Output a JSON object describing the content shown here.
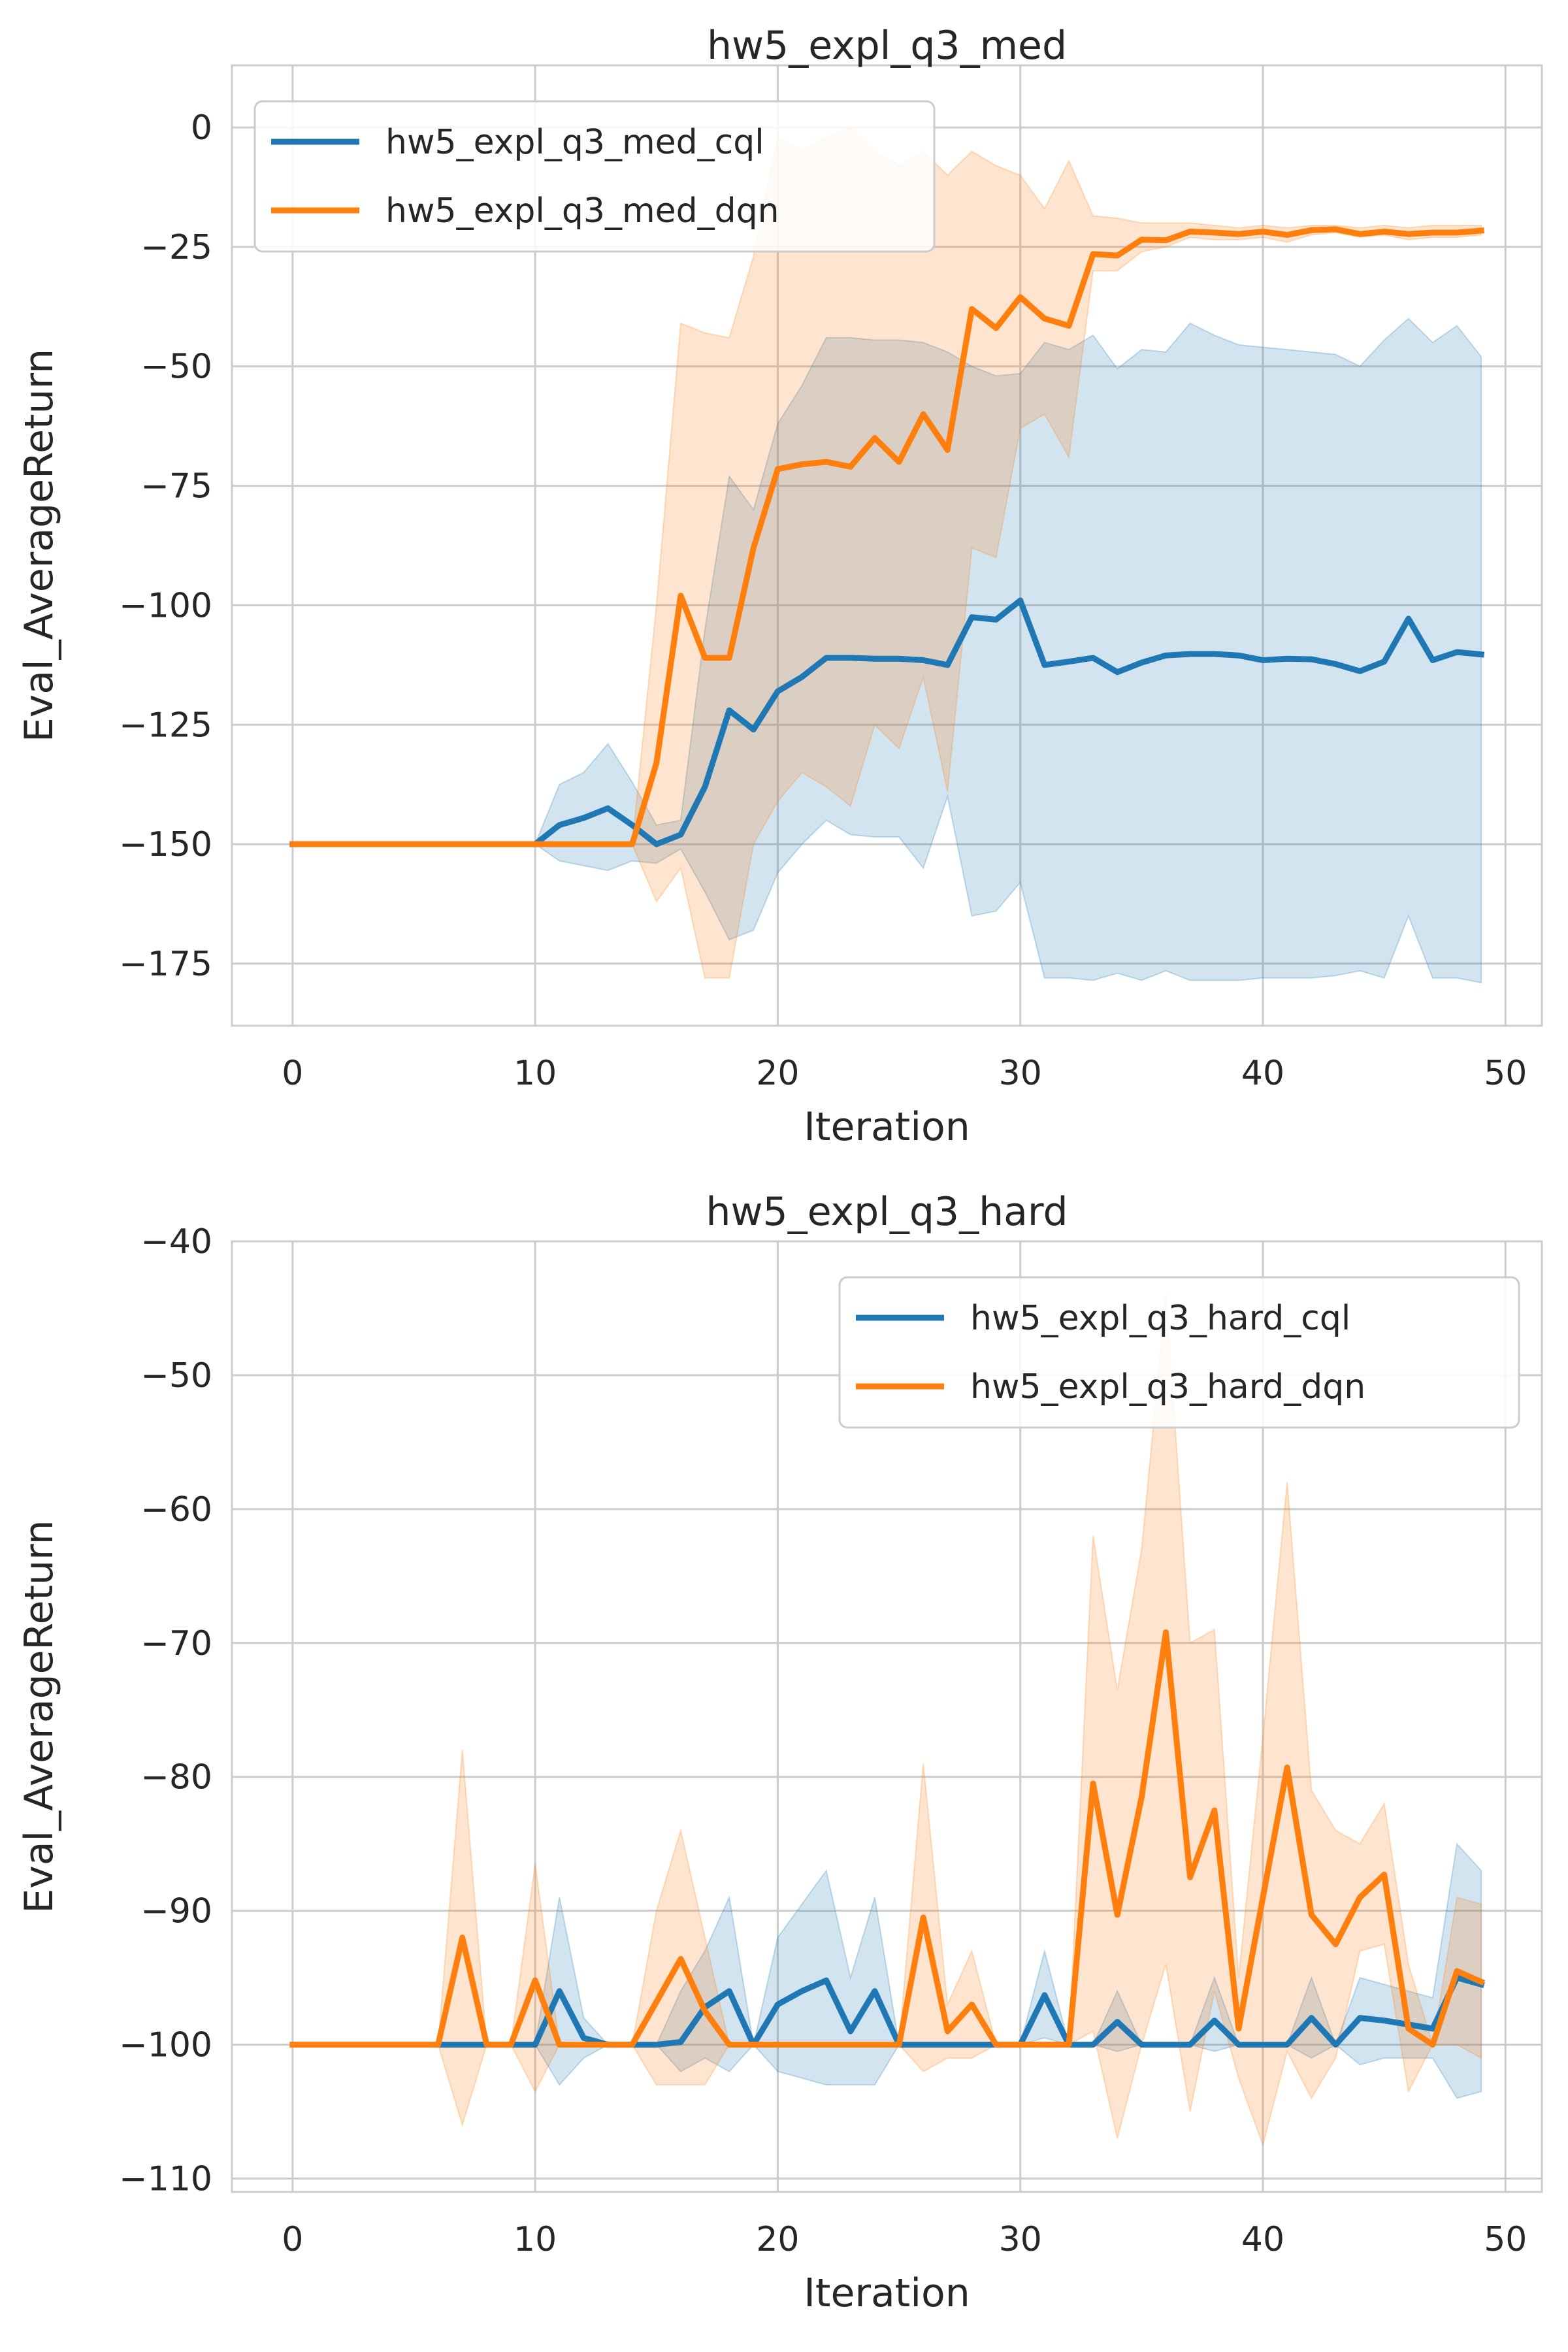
{
  "chart_data": [
    {
      "type": "line",
      "title": "hw5_expl_q3_med",
      "xlabel": "Iteration",
      "ylabel": "Eval_AverageReturn",
      "xlim": [
        -2.5,
        51.5
      ],
      "ylim": [
        -188,
        13
      ],
      "xticks": [
        0,
        10,
        20,
        30,
        40,
        50
      ],
      "yticks": [
        0,
        -25,
        -50,
        -75,
        -100,
        -125,
        -150,
        -175
      ],
      "grid": true,
      "legend_position": "upper-left",
      "x": [
        0,
        1,
        2,
        3,
        4,
        5,
        6,
        7,
        8,
        9,
        10,
        11,
        12,
        13,
        14,
        15,
        16,
        17,
        18,
        19,
        20,
        21,
        22,
        23,
        24,
        25,
        26,
        27,
        28,
        29,
        30,
        31,
        32,
        33,
        34,
        35,
        36,
        37,
        38,
        39,
        40,
        41,
        42,
        43,
        44,
        45,
        46,
        47,
        48,
        49
      ],
      "series": [
        {
          "name": "hw5_expl_q3_med_cql",
          "color": "#1f77b4",
          "values": [
            -150,
            -150,
            -150,
            -150,
            -150,
            -150,
            -150,
            -150,
            -150,
            -150,
            -150,
            -146,
            -144.5,
            -142.5,
            -146,
            -150,
            -148,
            -138,
            -122,
            -126,
            -118,
            -115,
            -111,
            -111,
            -111.2,
            -111.2,
            -111.5,
            -112.5,
            -102.5,
            -103,
            -99,
            -112.5,
            -111.8,
            -111,
            -114,
            -112,
            -110.5,
            -110.2,
            -110.2,
            -110.5,
            -111.5,
            -111.2,
            -111.3,
            -112.3,
            -113.8,
            -111.8,
            -102.8,
            -111.5,
            -109.8,
            -110.3
          ],
          "upper": [
            -150,
            -150,
            -150,
            -150,
            -150,
            -150,
            -150,
            -150,
            -150,
            -150,
            -150,
            -137.5,
            -135,
            -129,
            -137,
            -146,
            -145,
            -105,
            -73,
            -80,
            -62,
            -54,
            -44,
            -44,
            -44.5,
            -44.5,
            -45,
            -47,
            -50,
            -52,
            -51.5,
            -45,
            -46.5,
            -43.5,
            -50.5,
            -46.5,
            -47,
            -41,
            -43.5,
            -45.5,
            -46,
            -46.5,
            -47,
            -47.5,
            -50,
            -44.5,
            -40,
            -45,
            -41.5,
            -48
          ],
          "lower": [
            -150,
            -150,
            -150,
            -150,
            -150,
            -150,
            -150,
            -150,
            -150,
            -150,
            -150,
            -153.5,
            -154.5,
            -155.5,
            -153.5,
            -154,
            -151,
            -160,
            -170,
            -168,
            -156,
            -150,
            -145,
            -148,
            -148.5,
            -148.5,
            -155,
            -140,
            -165,
            -164,
            -158,
            -178,
            -178,
            -178.5,
            -177,
            -178.5,
            -176.5,
            -178.5,
            -178.5,
            -178.5,
            -178,
            -178,
            -178,
            -177.5,
            -176.5,
            -178,
            -165,
            -178,
            -178,
            -179
          ]
        },
        {
          "name": "hw5_expl_q3_med_dqn",
          "color": "#ff7f0e",
          "values": [
            -150,
            -150,
            -150,
            -150,
            -150,
            -150,
            -150,
            -150,
            -150,
            -150,
            -150,
            -150,
            -150,
            -150,
            -150,
            -133,
            -98,
            -111,
            -111,
            -88,
            -71.5,
            -70.5,
            -70,
            -71,
            -65,
            -70,
            -60,
            -67.5,
            -38,
            -42,
            -35.5,
            -40,
            -41.5,
            -26.5,
            -26.8,
            -23.5,
            -23.6,
            -21.8,
            -22,
            -22.3,
            -21.8,
            -22.5,
            -21.5,
            -21.3,
            -22.3,
            -21.8,
            -22.3,
            -22,
            -22,
            -21.6
          ],
          "upper": [
            -150,
            -150,
            -150,
            -150,
            -150,
            -150,
            -150,
            -150,
            -150,
            -150,
            -150,
            -150,
            -150,
            -150,
            -150,
            -100,
            -41,
            -43,
            -44,
            -27,
            -2,
            -5,
            -2,
            0,
            -5,
            -8,
            -5,
            -10,
            -5,
            -8,
            -10,
            -17,
            -7,
            -18.5,
            -19,
            -20,
            -20,
            -20,
            -20.5,
            -21,
            -20.5,
            -21,
            -20.5,
            -20.5,
            -21,
            -20.5,
            -21,
            -20.5,
            -20.5,
            -20.5
          ],
          "lower": [
            -150,
            -150,
            -150,
            -150,
            -150,
            -150,
            -150,
            -150,
            -150,
            -150,
            -150,
            -150,
            -150,
            -150,
            -150,
            -162,
            -155,
            -178,
            -178,
            -150,
            -141,
            -135,
            -138,
            -142,
            -125,
            -130,
            -115,
            -139,
            -88,
            -90,
            -63,
            -60,
            -69,
            -30,
            -30,
            -26,
            -25,
            -23,
            -23.5,
            -23.5,
            -23,
            -24,
            -22.5,
            -22,
            -23,
            -22.5,
            -23.5,
            -23,
            -23,
            -22.5
          ]
        }
      ]
    },
    {
      "type": "line",
      "title": "hw5_expl_q3_hard",
      "xlabel": "Iteration",
      "ylabel": "Eval_AverageReturn",
      "xlim": [
        -2.5,
        51.5
      ],
      "ylim": [
        -111,
        -40
      ],
      "xticks": [
        0,
        10,
        20,
        30,
        40,
        50
      ],
      "yticks": [
        -40,
        -50,
        -60,
        -70,
        -80,
        -90,
        -100,
        -110
      ],
      "grid": true,
      "legend_position": "upper-right",
      "x": [
        0,
        1,
        2,
        3,
        4,
        5,
        6,
        7,
        8,
        9,
        10,
        11,
        12,
        13,
        14,
        15,
        16,
        17,
        18,
        19,
        20,
        21,
        22,
        23,
        24,
        25,
        26,
        27,
        28,
        29,
        30,
        31,
        32,
        33,
        34,
        35,
        36,
        37,
        38,
        39,
        40,
        41,
        42,
        43,
        44,
        45,
        46,
        47,
        48,
        49
      ],
      "series": [
        {
          "name": "hw5_expl_q3_hard_cql",
          "color": "#1f77b4",
          "values": [
            null,
            null,
            null,
            null,
            null,
            null,
            -100,
            -100,
            -100,
            -100,
            -100,
            -96,
            -99.5,
            -100,
            -100,
            -100,
            -99.8,
            -97.2,
            -96,
            -100,
            -97,
            -96,
            -95.2,
            -99,
            -96,
            -100,
            -100,
            -100,
            -100,
            -100,
            -100,
            -96.3,
            -100,
            -100,
            -98.3,
            -100,
            -100,
            -100,
            -98.2,
            -100,
            -100,
            -100,
            -98,
            -100,
            -98,
            -98.2,
            -98.5,
            -98.8,
            -95,
            -95.5
          ],
          "upper": [
            null,
            null,
            null,
            null,
            null,
            null,
            -100,
            -100,
            -100,
            -100,
            -100,
            -89,
            -98,
            -100,
            -100,
            -100,
            -96,
            -93,
            -89,
            -100,
            -92,
            -89.5,
            -87,
            -95,
            -89,
            -100,
            -100,
            -100,
            -100,
            -100,
            -100,
            -93,
            -100,
            -100,
            -96,
            -100,
            -100,
            -100,
            -95,
            -100,
            -100,
            -100,
            -95,
            -100,
            -95,
            -95.5,
            -96,
            -96.5,
            -85,
            -87
          ],
          "lower": [
            null,
            null,
            null,
            null,
            null,
            null,
            -100,
            -100,
            -100,
            -100,
            -100,
            -103,
            -101,
            -100,
            -100,
            -100,
            -102,
            -101,
            -102,
            -100,
            -102,
            -102.5,
            -103,
            -103,
            -103,
            -100,
            -100,
            -100,
            -100,
            -100,
            -100,
            -99.5,
            -100,
            -100,
            -100.5,
            -100,
            -100,
            -100,
            -100.5,
            -100,
            -100,
            -100,
            -101,
            -100,
            -101.5,
            -101,
            -101,
            -101,
            -104,
            -103.5
          ]
        },
        {
          "name": "hw5_expl_q3_hard_dqn",
          "color": "#ff7f0e",
          "values": [
            -100,
            -100,
            -100,
            -100,
            -100,
            -100,
            -100,
            -92,
            -100,
            -100,
            -95.2,
            -100,
            -100,
            -100,
            -100,
            -96.8,
            -93.6,
            -97.5,
            -100,
            -100,
            -100,
            -100,
            -100,
            -100,
            -100,
            -100,
            -90.5,
            -99,
            -97,
            -100,
            -100,
            -100,
            -100,
            -80.5,
            -90.3,
            -81.5,
            -69.2,
            -87.5,
            -82.5,
            -98.8,
            -89,
            -79.3,
            -90.3,
            -92.5,
            -89,
            -87.3,
            -98.8,
            -100,
            -94.5,
            -95.3
          ],
          "upper": [
            -100,
            -100,
            -100,
            -100,
            -100,
            -100,
            -100,
            -78,
            -100,
            -100,
            -86.5,
            -100,
            -100,
            -100,
            -100,
            -90,
            -84,
            -92,
            -100,
            -100,
            -100,
            -100,
            -100,
            -100,
            -100,
            -100,
            -79,
            -97,
            -93,
            -100,
            -100,
            -100,
            -100,
            -62,
            -73.5,
            -63,
            -44,
            -70,
            -69,
            -95,
            -77,
            -58,
            -81,
            -84,
            -85,
            -82,
            -94,
            -100,
            -89,
            -89.5
          ],
          "lower": [
            -100,
            -100,
            -100,
            -100,
            -100,
            -100,
            -100,
            -106,
            -100,
            -100,
            -103.5,
            -100,
            -100,
            -100,
            -100,
            -103,
            -103,
            -103,
            -100,
            -100,
            -100,
            -100,
            -100,
            -100,
            -100,
            -100,
            -102,
            -101,
            -101,
            -100,
            -100,
            -100,
            -100,
            -99,
            -107,
            -100,
            -94,
            -105,
            -96,
            -102.5,
            -107.5,
            -100.5,
            -104,
            -101,
            -93,
            -92.5,
            -103.5,
            -100,
            -100,
            -101
          ]
        }
      ]
    }
  ]
}
